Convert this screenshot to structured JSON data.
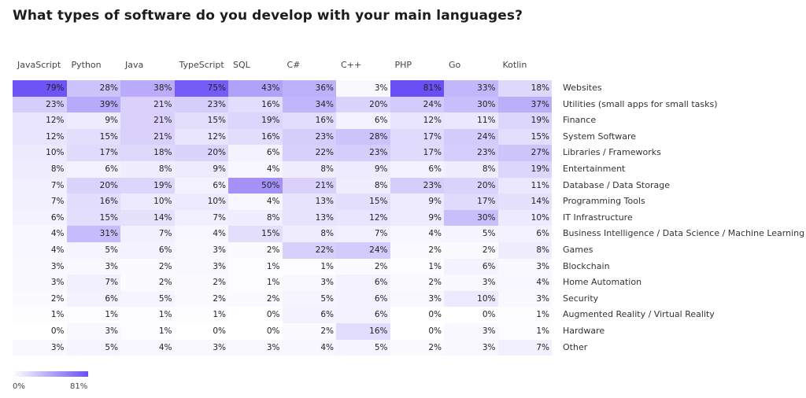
{
  "title": "What types of software do you develop with your main languages?",
  "chart_data": {
    "type": "heatmap",
    "columns": [
      "JavaScript",
      "Python",
      "Java",
      "TypeScript",
      "SQL",
      "C#",
      "C++",
      "PHP",
      "Go",
      "Kotlin"
    ],
    "rows": [
      {
        "label": "Websites",
        "values": [
          79,
          28,
          38,
          75,
          43,
          36,
          3,
          81,
          33,
          18
        ]
      },
      {
        "label": "Utilities (small apps for small tasks)",
        "values": [
          23,
          39,
          21,
          23,
          16,
          34,
          20,
          24,
          30,
          37
        ]
      },
      {
        "label": "Finance",
        "values": [
          12,
          9,
          21,
          15,
          19,
          16,
          6,
          12,
          11,
          19
        ]
      },
      {
        "label": "System Software",
        "values": [
          12,
          15,
          21,
          12,
          16,
          23,
          28,
          17,
          24,
          15
        ]
      },
      {
        "label": "Libraries / Frameworks",
        "values": [
          10,
          17,
          18,
          20,
          6,
          22,
          23,
          17,
          23,
          27
        ]
      },
      {
        "label": "Entertainment",
        "values": [
          8,
          6,
          8,
          9,
          4,
          8,
          9,
          6,
          8,
          19
        ]
      },
      {
        "label": "Database / Data Storage",
        "values": [
          7,
          20,
          19,
          6,
          50,
          21,
          8,
          23,
          20,
          11
        ]
      },
      {
        "label": "Programming Tools",
        "values": [
          7,
          16,
          10,
          10,
          4,
          13,
          15,
          9,
          17,
          14
        ]
      },
      {
        "label": "IT Infrastructure",
        "values": [
          6,
          15,
          14,
          7,
          8,
          13,
          12,
          9,
          30,
          10
        ]
      },
      {
        "label": "Business Intelligence / Data Science / Machine Learning",
        "values": [
          4,
          31,
          7,
          4,
          15,
          8,
          7,
          4,
          5,
          6
        ]
      },
      {
        "label": "Games",
        "values": [
          4,
          5,
          6,
          3,
          2,
          22,
          24,
          2,
          2,
          8
        ]
      },
      {
        "label": "Blockchain",
        "values": [
          3,
          3,
          2,
          3,
          1,
          1,
          2,
          1,
          6,
          3
        ]
      },
      {
        "label": "Home Automation",
        "values": [
          3,
          7,
          2,
          2,
          1,
          3,
          6,
          2,
          3,
          4
        ]
      },
      {
        "label": "Security",
        "values": [
          2,
          6,
          5,
          2,
          2,
          5,
          6,
          3,
          10,
          3
        ]
      },
      {
        "label": "Augmented Reality / Virtual Reality",
        "values": [
          1,
          1,
          1,
          1,
          0,
          6,
          6,
          0,
          0,
          1
        ]
      },
      {
        "label": "Hardware",
        "values": [
          0,
          3,
          1,
          0,
          0,
          2,
          16,
          0,
          3,
          1
        ]
      },
      {
        "label": "Other",
        "values": [
          3,
          5,
          4,
          3,
          3,
          4,
          5,
          2,
          3,
          7
        ]
      }
    ],
    "unit": "%",
    "color_min": "#ffffff",
    "color_max": "#6b4ff5",
    "range": [
      0,
      81
    ],
    "legend": {
      "min_label": "0%",
      "max_label": "81%",
      "placement": "bottom-left"
    }
  }
}
